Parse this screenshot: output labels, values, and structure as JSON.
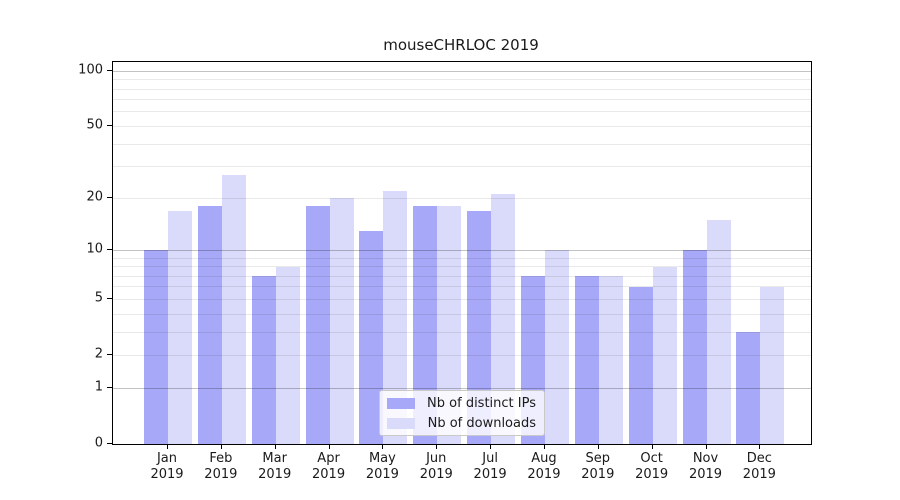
{
  "title": "mouseCHRLOC 2019",
  "colors": {
    "ips_bar": "#a8a8f8",
    "downloads_bar": "#dadafa",
    "grid_major": "#c3c3c3",
    "grid_minor": "#eaeaea",
    "axis": "#000000",
    "text": "#1a1a1a"
  },
  "legend": {
    "items": [
      {
        "label": "Nb of distinct IPs",
        "series": "ips"
      },
      {
        "label": "Nb of downloads",
        "series": "downloads"
      }
    ]
  },
  "chart_data": {
    "type": "bar",
    "title": "mouseCHRLOC 2019",
    "categories": [
      "Jan 2019",
      "Feb 2019",
      "Mar 2019",
      "Apr 2019",
      "May 2019",
      "Jun 2019",
      "Jul 2019",
      "Aug 2019",
      "Sep 2019",
      "Oct 2019",
      "Nov 2019",
      "Dec 2019"
    ],
    "series": [
      {
        "name": "Nb of distinct IPs",
        "color_key": "ips_bar",
        "values": [
          10,
          18,
          7,
          18,
          13,
          18,
          17,
          7,
          7,
          6,
          10,
          3
        ]
      },
      {
        "name": "Nb of downloads",
        "color_key": "downloads_bar",
        "values": [
          17,
          27,
          8,
          20,
          22,
          18,
          21,
          10,
          7,
          8,
          15,
          6
        ]
      }
    ],
    "xlabel": "",
    "ylabel": "",
    "y_scale": "log1p",
    "y_ticks": [
      0,
      1,
      2,
      5,
      10,
      20,
      50,
      100
    ],
    "grid_major_values": [
      1,
      10,
      100
    ],
    "grid_minor_values": [
      2,
      3,
      4,
      5,
      6,
      7,
      8,
      9,
      20,
      30,
      40,
      50,
      60,
      70,
      80,
      90
    ],
    "ylim": [
      0,
      112
    ],
    "grid": "horizontal",
    "legend_position": "inside lower center"
  }
}
